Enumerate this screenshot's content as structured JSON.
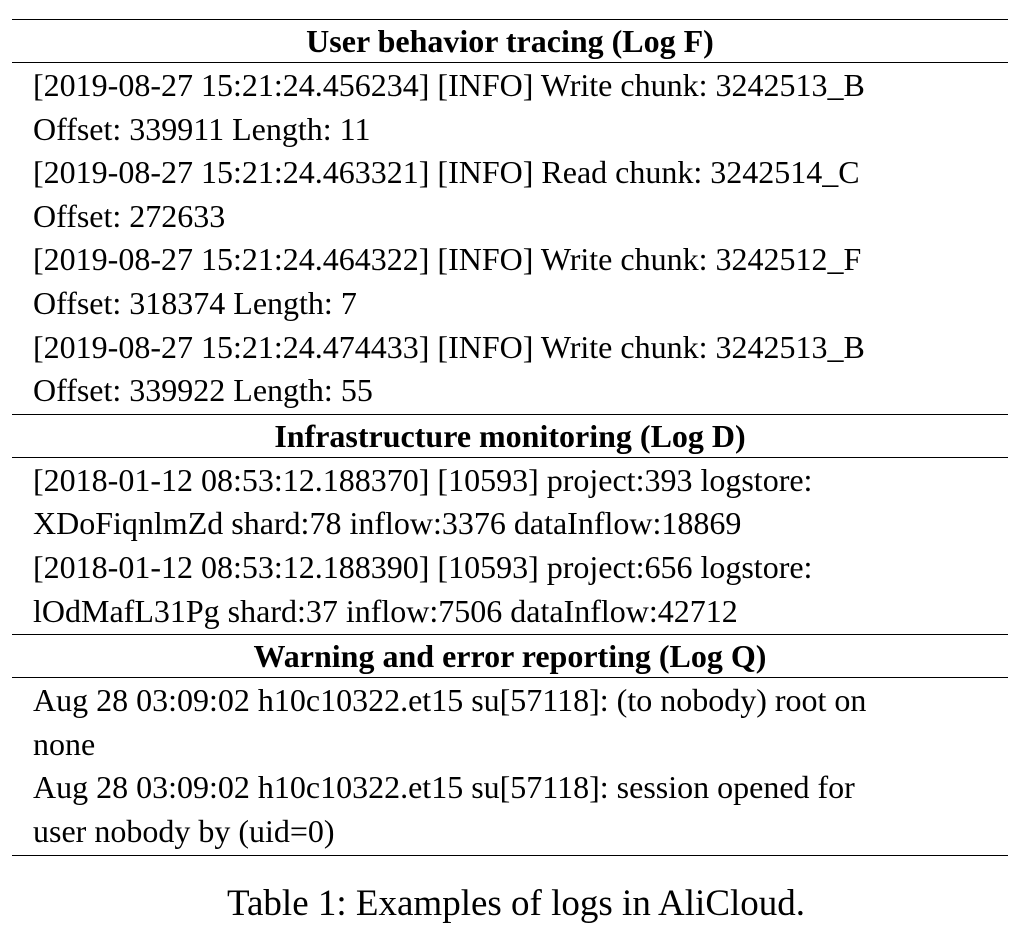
{
  "sections": [
    {
      "header": "User behavior tracing (Log F)",
      "lines": [
        "[2019-08-27 15:21:24.456234] [INFO] Write chunk: 3242513_B",
        "Offset: 339911 Length: 11",
        "[2019-08-27 15:21:24.463321] [INFO] Read chunk: 3242514_C",
        "Offset: 272633",
        "[2019-08-27 15:21:24.464322] [INFO] Write chunk: 3242512_F",
        "Offset: 318374 Length: 7",
        "[2019-08-27 15:21:24.474433] [INFO] Write chunk: 3242513_B",
        "Offset: 339922 Length: 55"
      ]
    },
    {
      "header": "Infrastructure monitoring (Log D)",
      "lines": [
        "[2018-01-12 08:53:12.188370] [10593] project:393 logstore:",
        "XDoFiqnlmZd shard:78 inflow:3376 dataInflow:18869",
        "[2018-01-12 08:53:12.188390] [10593] project:656 logstore:",
        "lOdMafL31Pg shard:37 inflow:7506 dataInflow:42712"
      ]
    },
    {
      "header": "Warning and error reporting (Log Q)",
      "lines": [
        "Aug 28 03:09:02 h10c10322.et15 su[57118]: (to nobody) root on",
        "none",
        "Aug 28 03:09:02 h10c10322.et15 su[57118]: session opened for",
        "user nobody by (uid=0)"
      ]
    }
  ],
  "caption": "Table 1: Examples of logs in AliCloud."
}
